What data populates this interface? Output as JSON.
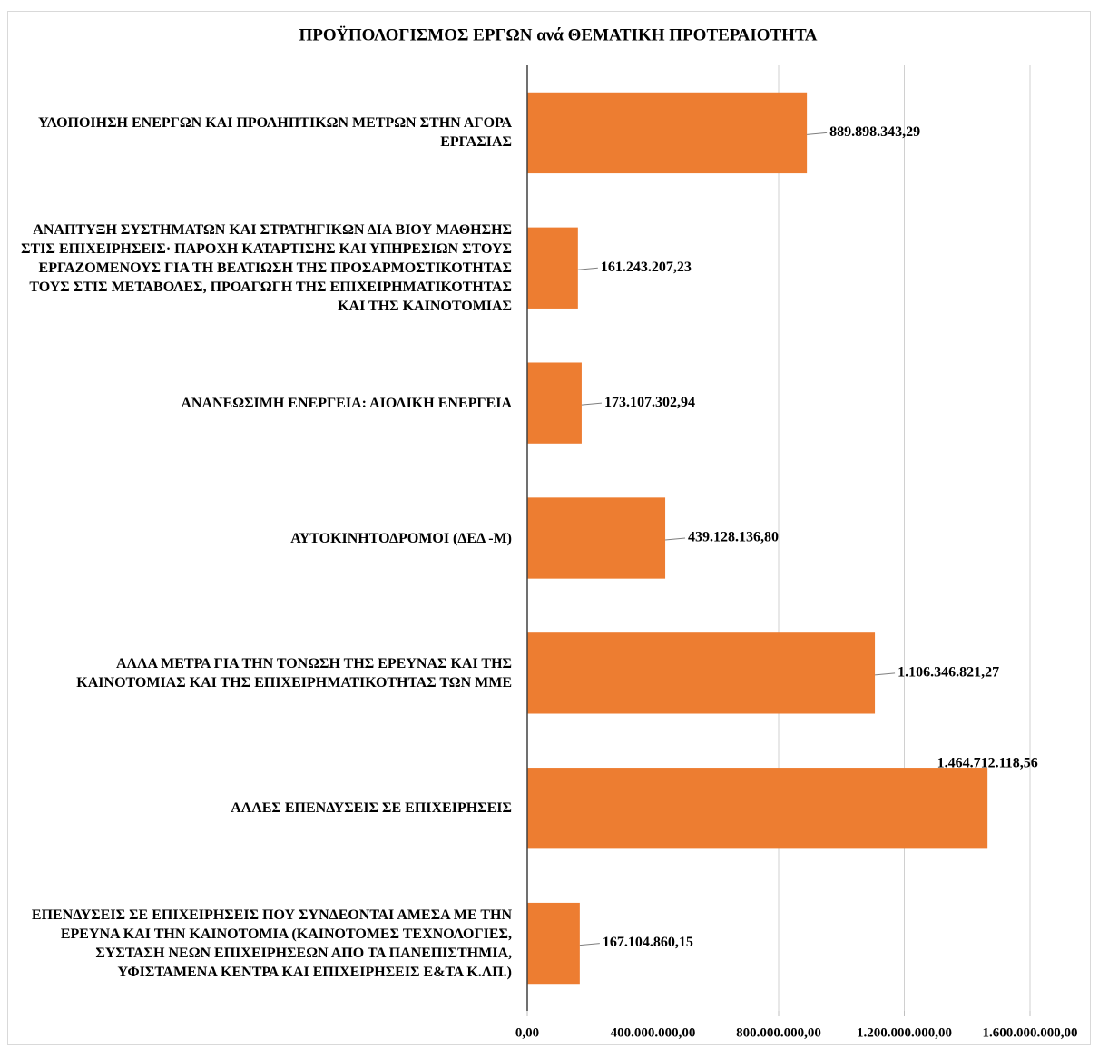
{
  "chart_data": {
    "type": "bar",
    "orientation": "horizontal",
    "title": "ΠΡΟΫΠΟΛΟΓΙΣΜΟΣ ΕΡΓΩΝ ανά ΘΕΜΑΤΙΚΗ ΠΡΟΤΕΡΑΙΟΤΗΤΑ",
    "categories": [
      "ΥΛΟΠΟΙΗΣΗ ΕΝΕΡΓΩΝ ΚΑΙ ΠΡΟΛΗΠΤΙΚΩΝ ΜΕΤΡΩΝ ΣΤΗΝ ΑΓΟΡΑ ΕΡΓΑΣΙΑΣ",
      "ΑΝΑΠΤΥΞΗ ΣΥΣΤΗΜΑΤΩΝ ΚΑΙ ΣΤΡΑΤΗΓΙΚΩΝ ΔΙΑ ΒΙΟΥ ΜΑΘΗΣΗΣ ΣΤΙΣ ΕΠΙΧΕΙΡΗΣΕΙΣ· ΠΑΡΟΧΗ ΚΑΤΑΡΤΙΣΗΣ ΚΑΙ ΥΠΗΡΕΣΙΩΝ ΣΤΟΥΣ ΕΡΓΑΖΟΜΕΝΟΥΣ ΓΙΑ ΤΗ ΒΕΛΤΙΩΣΗ ΤΗΣ ΠΡΟΣΑΡΜΟΣΤΙΚΟΤΗΤΑΣ ΤΟΥΣ ΣΤΙΣ ΜΕΤΑΒΟΛΕΣ, ΠΡΟΑΓΩΓΗ ΤΗΣ ΕΠΙΧΕΙΡΗΜΑΤΙΚΟΤΗΤΑΣ ΚΑΙ ΤΗΣ ΚΑΙΝΟΤΟΜΙΑΣ",
      "ΑΝΑΝΕΩΣΙΜΗ ΕΝΕΡΓΕΙΑ: ΑΙΟΛΙΚΗ ΕΝΕΡΓΕΙΑ",
      "ΑΥΤΟΚΙΝΗΤΟΔΡΟΜΟΙ (ΔΕΔ -Μ)",
      "ΑΛΛΑ ΜΕΤΡΑ ΓΙΑ ΤΗΝ ΤΟΝΩΣΗ ΤΗΣ ΕΡΕΥΝΑΣ ΚΑΙ ΤΗΣ ΚΑΙΝΟΤΟΜΙΑΣ ΚΑΙ ΤΗΣ ΕΠΙΧΕΙΡΗΜΑΤΙΚΟΤΗΤΑΣ ΤΩΝ ΜΜΕ",
      "ΑΛΛΕΣ ΕΠΕΝΔΥΣΕΙΣ ΣΕ ΕΠΙΧΕΙΡΗΣΕΙΣ",
      "ΕΠΕΝΔΥΣΕΙΣ ΣΕ ΕΠΙΧΕΙΡΗΣΕΙΣ ΠΟΥ ΣΥΝΔΕΟΝΤΑΙ ΑΜΕΣΑ ΜΕ ΤΗΝ ΕΡΕΥΝΑ ΚΑΙ ΤΗΝ ΚΑΙΝΟΤΟΜΙΑ (ΚΑΙΝΟΤΟΜΕΣ ΤΕΧΝΟΛΟΓΙΕΣ, ΣΥΣΤΑΣΗ ΝΕΩΝ ΕΠΙΧΕΙΡΗΣΕΩΝ ΑΠΟ ΤΑ ΠΑΝΕΠΙΣΤΗΜΙΑ, ΥΦΙΣΤΑΜΕΝΑ ΚΕΝΤΡΑ ΚΑΙ ΕΠΙΧΕΙΡΗΣΕΙΣ Ε&ΤΑ Κ.ΛΠ.)"
    ],
    "values": [
      889898343.29,
      161243207.23,
      173107302.94,
      439128136.8,
      1106346821.27,
      1464712118.56,
      167104860.15
    ],
    "value_labels": [
      "889.898.343,29",
      "161.243.207,23",
      "173.107.302,94",
      "439.128.136,80",
      "1.106.346.821,27",
      "1.464.712.118,56",
      "167.104.860,15"
    ],
    "color": "#ed7d31",
    "xlim": [
      0,
      1600000000
    ],
    "xticks": [
      {
        "value": 0,
        "label": "0,00"
      },
      {
        "value": 400000000,
        "label": "400.000.000,00"
      },
      {
        "value": 800000000,
        "label": "800.000.000,00"
      },
      {
        "value": 1200000000,
        "label": "1.200.000.000,00"
      },
      {
        "value": 1600000000,
        "label": "1.600.000.000,00"
      }
    ],
    "grid": true
  }
}
